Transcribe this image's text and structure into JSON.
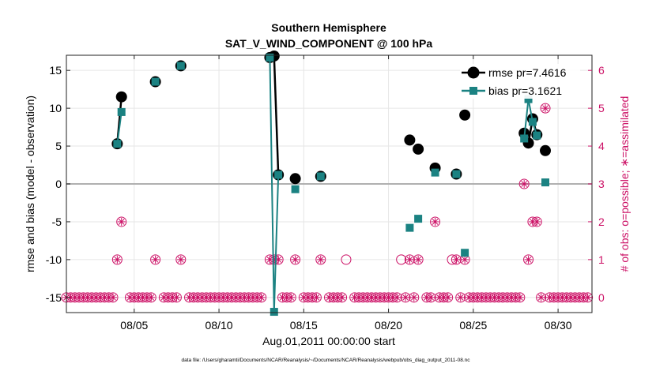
{
  "chart_data": {
    "type": "line",
    "title": "Southern Hemisphere",
    "subtitle": "SAT_V_WIND_COMPONENT @ 100 hPa",
    "xlabel": "Aug.01,2011 00:00:00 start",
    "ylabel_left": "rmse and bias (model - observation)",
    "ylabel_right": "# of obs: o=possible; ∗=assimilated",
    "footnote": "data file: /Users/gharamti/Documents/NCAR/Reanalysis/~/Documents/NCAR/Reanalysis/webpub/obs_diag_output_2011-08.nc",
    "xlim": [
      1,
      32
    ],
    "ylim_left": [
      -17,
      17
    ],
    "ylim_right": [
      -0.4,
      6.4
    ],
    "x_ticks": [
      5,
      10,
      15,
      20,
      25,
      30
    ],
    "x_tick_labels": [
      "08/05",
      "08/10",
      "08/15",
      "08/20",
      "08/25",
      "08/30"
    ],
    "y_left_ticks": [
      -15,
      -10,
      -5,
      0,
      5,
      10,
      15
    ],
    "y_left_tick_labels": [
      "-15",
      "-10",
      "-5",
      "0",
      "5",
      "10",
      "15"
    ],
    "y_right_ticks": [
      0,
      1,
      2,
      3,
      4,
      5,
      6
    ],
    "y_right_tick_labels": [
      "0",
      "1",
      "2",
      "3",
      "4",
      "5",
      "6"
    ],
    "legend": {
      "position": "top-right",
      "entries": [
        "rmse pr=7.4616",
        "bias pr=3.1621"
      ]
    },
    "colors": {
      "rmse": "#000000",
      "bias": "#1b8282",
      "obs": "#cc1166",
      "zero_line": "#b0b0b0",
      "grid": "#e6e6e6"
    },
    "series": [
      {
        "name": "rmse pr=7.4616",
        "axis": "left",
        "marker": "circle",
        "points": [
          [
            4.0,
            5.3
          ],
          [
            4.25,
            11.5
          ],
          [
            6.25,
            13.5
          ],
          [
            7.75,
            15.6
          ],
          [
            13.0,
            16.7
          ],
          [
            13.25,
            16.9
          ],
          [
            13.5,
            1.2
          ],
          [
            14.5,
            0.7
          ],
          [
            16.0,
            1.0
          ],
          [
            21.25,
            5.8
          ],
          [
            21.75,
            4.6
          ],
          [
            22.75,
            2.1
          ],
          [
            24.0,
            1.3
          ],
          [
            24.5,
            9.1
          ],
          [
            28.0,
            6.7
          ],
          [
            28.25,
            5.4
          ],
          [
            28.5,
            8.6
          ],
          [
            28.75,
            6.5
          ],
          [
            29.25,
            4.4
          ]
        ],
        "segments": [
          [
            0,
            1
          ],
          [
            4,
            5
          ],
          [
            5,
            6
          ],
          [
            14,
            15
          ],
          [
            15,
            16
          ],
          [
            16,
            17
          ]
        ]
      },
      {
        "name": "bias pr=3.1621",
        "axis": "left",
        "marker": "square",
        "points": [
          [
            4.0,
            5.3
          ],
          [
            4.25,
            9.5
          ],
          [
            6.25,
            13.5
          ],
          [
            7.75,
            15.6
          ],
          [
            13.0,
            16.7
          ],
          [
            13.25,
            -16.9
          ],
          [
            13.5,
            1.2
          ],
          [
            14.5,
            -0.7
          ],
          [
            16.0,
            1.0
          ],
          [
            21.25,
            -5.8
          ],
          [
            21.75,
            -4.6
          ],
          [
            22.75,
            1.5
          ],
          [
            24.0,
            1.3
          ],
          [
            24.5,
            -9.1
          ],
          [
            28.0,
            6.0
          ],
          [
            28.25,
            11.2
          ],
          [
            28.5,
            8.2
          ],
          [
            28.75,
            6.4
          ],
          [
            29.25,
            0.2
          ]
        ],
        "segments": [
          [
            0,
            1
          ],
          [
            4,
            5
          ],
          [
            5,
            6
          ],
          [
            14,
            15
          ],
          [
            15,
            16
          ],
          [
            16,
            17
          ]
        ]
      }
    ],
    "obs_possible": [
      [
        1,
        0
      ],
      [
        1.25,
        0
      ],
      [
        1.5,
        0
      ],
      [
        1.75,
        0
      ],
      [
        2,
        0
      ],
      [
        2.25,
        0
      ],
      [
        2.5,
        0
      ],
      [
        2.75,
        0
      ],
      [
        3,
        0
      ],
      [
        3.25,
        0
      ],
      [
        3.5,
        0
      ],
      [
        3.75,
        0
      ],
      [
        4,
        1
      ],
      [
        4.25,
        2
      ],
      [
        4.75,
        0
      ],
      [
        5,
        0
      ],
      [
        5.25,
        0
      ],
      [
        5.5,
        0
      ],
      [
        5.75,
        0
      ],
      [
        6,
        0
      ],
      [
        6.25,
        1
      ],
      [
        6.75,
        0
      ],
      [
        7,
        0
      ],
      [
        7.25,
        0
      ],
      [
        7.5,
        0
      ],
      [
        7.75,
        1
      ],
      [
        8.25,
        0
      ],
      [
        8.5,
        0
      ],
      [
        8.75,
        0
      ],
      [
        9,
        0
      ],
      [
        9.25,
        0
      ],
      [
        9.5,
        0
      ],
      [
        9.75,
        0
      ],
      [
        10,
        0
      ],
      [
        10.25,
        0
      ],
      [
        10.5,
        0
      ],
      [
        10.75,
        0
      ],
      [
        11,
        0
      ],
      [
        11.25,
        0
      ],
      [
        11.5,
        0
      ],
      [
        11.75,
        0
      ],
      [
        12,
        0
      ],
      [
        12.25,
        0
      ],
      [
        12.5,
        0
      ],
      [
        13,
        1
      ],
      [
        13.25,
        1
      ],
      [
        13.5,
        1
      ],
      [
        13.75,
        0
      ],
      [
        14,
        0
      ],
      [
        14.25,
        0
      ],
      [
        14.5,
        1
      ],
      [
        15,
        0
      ],
      [
        15.25,
        0
      ],
      [
        15.5,
        0
      ],
      [
        15.75,
        0
      ],
      [
        16,
        1
      ],
      [
        16.5,
        0
      ],
      [
        16.75,
        0
      ],
      [
        17,
        0
      ],
      [
        17.25,
        0
      ],
      [
        17.5,
        1
      ],
      [
        18,
        0
      ],
      [
        18.25,
        0
      ],
      [
        18.5,
        0
      ],
      [
        18.75,
        0
      ],
      [
        19,
        0
      ],
      [
        19.25,
        0
      ],
      [
        19.5,
        0
      ],
      [
        19.75,
        0
      ],
      [
        20,
        0
      ],
      [
        20.25,
        0
      ],
      [
        20.5,
        0
      ],
      [
        20.75,
        1
      ],
      [
        21,
        0
      ],
      [
        21.25,
        1
      ],
      [
        21.5,
        0
      ],
      [
        21.75,
        1
      ],
      [
        22.25,
        0
      ],
      [
        22.5,
        0
      ],
      [
        22.75,
        2
      ],
      [
        23,
        0
      ],
      [
        23.25,
        0
      ],
      [
        23.5,
        0
      ],
      [
        23.75,
        1
      ],
      [
        24,
        1
      ],
      [
        24.25,
        0
      ],
      [
        24.5,
        1
      ],
      [
        24.75,
        0
      ],
      [
        25,
        0
      ],
      [
        25.25,
        0
      ],
      [
        25.5,
        0
      ],
      [
        25.75,
        0
      ],
      [
        26,
        0
      ],
      [
        26.25,
        0
      ],
      [
        26.5,
        0
      ],
      [
        26.75,
        0
      ],
      [
        27,
        0
      ],
      [
        27.25,
        0
      ],
      [
        27.5,
        0
      ],
      [
        27.75,
        0
      ],
      [
        28,
        3
      ],
      [
        28.25,
        1
      ],
      [
        28.5,
        2
      ],
      [
        28.75,
        2
      ],
      [
        29,
        0
      ],
      [
        29.25,
        5
      ],
      [
        29.5,
        0
      ],
      [
        29.75,
        0
      ],
      [
        30,
        0
      ],
      [
        30.25,
        0
      ],
      [
        30.5,
        0
      ],
      [
        30.75,
        0
      ],
      [
        31,
        0
      ],
      [
        31.25,
        0
      ],
      [
        31.5,
        0
      ],
      [
        31.75,
        0
      ]
    ],
    "obs_assimilated": [
      [
        1,
        0
      ],
      [
        1.25,
        0
      ],
      [
        1.5,
        0
      ],
      [
        1.75,
        0
      ],
      [
        2,
        0
      ],
      [
        2.25,
        0
      ],
      [
        2.5,
        0
      ],
      [
        2.75,
        0
      ],
      [
        3,
        0
      ],
      [
        3.25,
        0
      ],
      [
        3.5,
        0
      ],
      [
        3.75,
        0
      ],
      [
        4,
        1
      ],
      [
        4.25,
        2
      ],
      [
        4.75,
        0
      ],
      [
        5,
        0
      ],
      [
        5.25,
        0
      ],
      [
        5.5,
        0
      ],
      [
        5.75,
        0
      ],
      [
        6,
        0
      ],
      [
        6.25,
        1
      ],
      [
        6.75,
        0
      ],
      [
        7,
        0
      ],
      [
        7.25,
        0
      ],
      [
        7.5,
        0
      ],
      [
        7.75,
        1
      ],
      [
        8.25,
        0
      ],
      [
        8.5,
        0
      ],
      [
        8.75,
        0
      ],
      [
        9,
        0
      ],
      [
        9.25,
        0
      ],
      [
        9.5,
        0
      ],
      [
        9.75,
        0
      ],
      [
        10,
        0
      ],
      [
        10.25,
        0
      ],
      [
        10.5,
        0
      ],
      [
        10.75,
        0
      ],
      [
        11,
        0
      ],
      [
        11.25,
        0
      ],
      [
        11.5,
        0
      ],
      [
        11.75,
        0
      ],
      [
        12,
        0
      ],
      [
        12.25,
        0
      ],
      [
        12.5,
        0
      ],
      [
        13,
        1
      ],
      [
        13.25,
        1
      ],
      [
        13.5,
        1
      ],
      [
        13.75,
        0
      ],
      [
        14,
        0
      ],
      [
        14.25,
        0
      ],
      [
        14.5,
        1
      ],
      [
        15,
        0
      ],
      [
        15.25,
        0
      ],
      [
        15.5,
        0
      ],
      [
        15.75,
        0
      ],
      [
        16,
        1
      ],
      [
        16.5,
        0
      ],
      [
        16.75,
        0
      ],
      [
        17,
        0
      ],
      [
        17.25,
        0
      ],
      [
        18,
        0
      ],
      [
        18.25,
        0
      ],
      [
        18.5,
        0
      ],
      [
        18.75,
        0
      ],
      [
        19,
        0
      ],
      [
        19.25,
        0
      ],
      [
        19.5,
        0
      ],
      [
        19.75,
        0
      ],
      [
        20,
        0
      ],
      [
        20.25,
        0
      ],
      [
        20.5,
        0
      ],
      [
        21,
        0
      ],
      [
        21.25,
        1
      ],
      [
        21.5,
        0
      ],
      [
        21.75,
        1
      ],
      [
        22.25,
        0
      ],
      [
        22.5,
        0
      ],
      [
        22.75,
        2
      ],
      [
        23,
        0
      ],
      [
        23.25,
        0
      ],
      [
        23.5,
        0
      ],
      [
        24,
        1
      ],
      [
        24.25,
        0
      ],
      [
        24.5,
        1
      ],
      [
        24.75,
        0
      ],
      [
        25,
        0
      ],
      [
        25.25,
        0
      ],
      [
        25.5,
        0
      ],
      [
        25.75,
        0
      ],
      [
        26,
        0
      ],
      [
        26.25,
        0
      ],
      [
        26.5,
        0
      ],
      [
        26.75,
        0
      ],
      [
        27,
        0
      ],
      [
        27.25,
        0
      ],
      [
        27.5,
        0
      ],
      [
        27.75,
        0
      ],
      [
        28,
        3
      ],
      [
        28.25,
        1
      ],
      [
        28.5,
        2
      ],
      [
        28.75,
        2
      ],
      [
        29,
        0
      ],
      [
        29.25,
        5
      ],
      [
        29.5,
        0
      ],
      [
        29.75,
        0
      ],
      [
        30,
        0
      ],
      [
        30.25,
        0
      ],
      [
        30.5,
        0
      ],
      [
        30.75,
        0
      ],
      [
        31,
        0
      ],
      [
        31.25,
        0
      ],
      [
        31.5,
        0
      ],
      [
        31.75,
        0
      ]
    ]
  }
}
